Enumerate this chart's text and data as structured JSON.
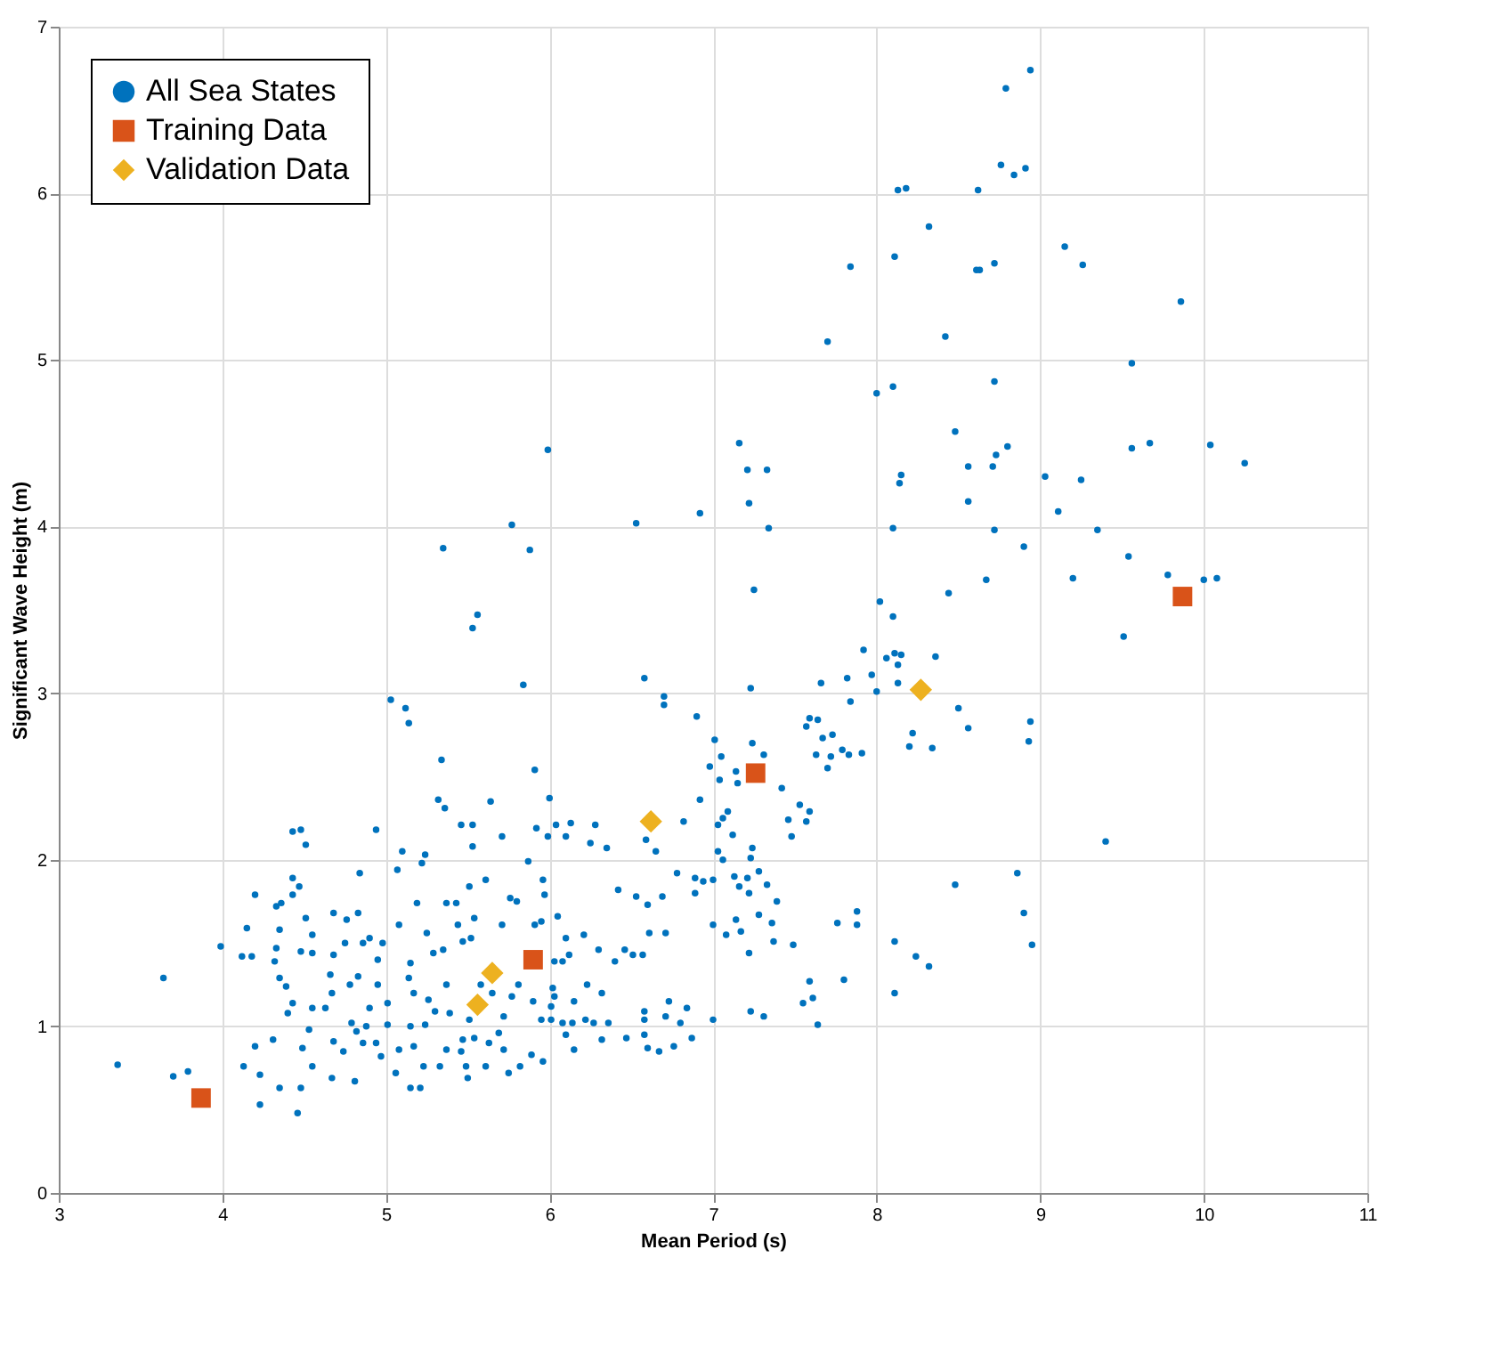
{
  "chart_data": {
    "type": "scatter",
    "xlabel": "Mean Period (s)",
    "ylabel": "Significant Wave Height (m)",
    "xlim": [
      3,
      11
    ],
    "ylim": [
      0,
      7
    ],
    "xticks": [
      3,
      4,
      5,
      6,
      7,
      8,
      9,
      10,
      11
    ],
    "yticks": [
      0,
      1,
      2,
      3,
      4,
      5,
      6,
      7
    ],
    "grid": true,
    "legend": "top left",
    "series": [
      {
        "name": "All Sea States",
        "color": "#0072bd",
        "marker": "circle",
        "x": [
          3.36,
          3.64,
          3.7,
          3.79,
          3.99,
          4.12,
          4.18,
          4.15,
          4.2,
          4.13,
          4.23,
          4.23,
          4.35,
          4.46,
          4.48,
          4.2,
          4.31,
          4.4,
          4.43,
          4.35,
          4.39,
          4.32,
          4.33,
          4.35,
          4.33,
          4.36,
          4.43,
          4.47,
          4.43,
          4.51,
          4.55,
          4.48,
          4.55,
          4.68,
          4.66,
          4.67,
          4.63,
          4.55,
          4.53,
          4.49,
          4.55,
          4.68,
          4.74,
          4.67,
          4.81,
          4.79,
          4.68,
          4.76,
          4.83,
          4.84,
          4.75,
          4.86,
          4.9,
          4.78,
          4.83,
          4.95,
          4.9,
          4.98,
          4.95,
          5.01,
          4.94,
          4.97,
          5.03,
          5.12,
          5.14,
          4.94,
          4.43,
          4.48,
          4.51,
          5.07,
          5.1,
          5.22,
          5.24,
          5.34,
          5.32,
          5.36,
          5.46,
          5.53,
          5.53,
          5.64,
          5.71,
          5.84,
          5.91,
          6.0,
          6.04,
          6.13,
          6.28,
          5.99,
          6.1,
          5.92,
          5.87,
          6.58,
          6.7,
          6.7,
          6.9,
          7.01,
          6.98,
          6.92,
          6.82,
          6.65,
          6.59,
          6.35,
          6.25,
          5.61,
          5.51,
          5.19,
          5.37,
          5.43,
          5.25,
          5.08,
          5.15,
          5.14,
          5.29,
          5.35,
          5.47,
          5.52,
          5.44,
          5.54,
          5.71,
          5.8,
          5.76,
          5.96,
          5.97,
          6.05,
          5.91,
          5.95,
          5.81,
          5.77,
          5.9,
          6.02,
          6.03,
          6.01,
          5.95,
          6.01,
          6.08,
          6.14,
          6.22,
          6.27,
          6.36,
          6.32,
          6.1,
          6.15,
          5.96,
          5.89,
          5.82,
          5.75,
          5.61,
          5.5,
          5.49,
          5.47,
          5.46,
          5.37,
          5.33,
          5.23,
          5.21,
          5.15,
          5.06,
          5.08,
          5.17,
          5.15,
          5.24,
          5.3,
          5.39,
          5.51,
          5.54,
          5.63,
          5.72,
          5.69,
          5.72,
          5.58,
          5.65,
          5.37,
          5.26,
          5.17,
          5.01,
          4.88,
          4.82,
          4.86,
          6.42,
          6.53,
          6.6,
          6.69,
          6.78,
          6.89,
          7.0,
          6.61,
          6.71,
          6.46,
          6.4,
          6.51,
          6.57,
          6.3,
          6.21,
          6.1,
          6.12,
          6.03,
          6.08,
          6.23,
          6.32,
          6.15,
          6.58,
          6.73,
          6.84,
          6.58,
          6.71,
          6.8,
          7.0,
          6.58,
          6.87,
          6.67,
          6.6,
          6.47,
          6.76,
          7.0,
          7.08,
          7.05,
          7.04,
          7.14,
          7.15,
          7.24,
          7.31,
          7.42,
          7.57,
          7.59,
          7.64,
          7.67,
          7.73,
          7.63,
          7.72,
          7.79,
          7.83,
          7.91,
          7.7,
          7.84,
          7.66,
          7.82,
          7.92,
          7.97,
          8.0,
          8.06,
          8.11,
          8.15,
          8.13,
          8.13,
          8.02,
          8.1,
          7.23,
          8.36,
          8.5,
          8.56,
          8.22,
          8.2,
          8.34,
          8.94,
          8.93,
          7.09,
          7.06,
          7.03,
          7.12,
          7.03,
          7.06,
          7.23,
          7.24,
          7.53,
          7.59,
          7.46,
          7.57,
          7.48,
          6.89,
          6.94,
          7.13,
          7.16,
          7.21,
          7.28,
          7.33,
          7.39,
          7.22,
          7.28,
          7.14,
          7.17,
          7.36,
          7.22,
          7.37,
          7.49,
          7.76,
          7.88,
          7.88,
          7.8,
          7.59,
          7.61,
          7.55,
          7.64,
          7.31,
          7.23,
          8.11,
          8.24,
          8.32,
          8.11,
          8.48,
          8.86,
          8.9,
          8.95,
          9.4,
          8.94,
          8.79,
          8.76,
          8.91,
          8.84,
          8.13,
          8.18,
          8.62,
          8.32,
          9.15,
          9.26,
          8.61,
          8.63,
          8.72,
          7.84,
          8.11,
          9.86,
          8.42,
          7.7,
          9.56,
          8.72,
          8.1,
          8.0,
          8.48,
          9.56,
          9.67,
          10.04,
          10.25,
          8.8,
          8.73,
          8.56,
          8.71,
          8.15,
          8.14,
          9.03,
          9.25,
          8.56,
          9.11,
          8.1,
          8.72,
          8.9,
          9.35,
          9.54,
          9.2,
          8.67,
          8.44,
          9.51,
          9.78,
          10.0,
          10.08,
          7.16,
          7.21,
          7.33,
          7.22,
          7.34,
          6.92,
          7.25,
          6.53,
          5.99,
          5.77,
          5.88,
          5.35,
          5.56,
          5.53
        ],
        "values": [
          0.77,
          1.29,
          0.7,
          0.73,
          1.48,
          1.42,
          1.42,
          1.59,
          1.79,
          0.76,
          0.71,
          0.53,
          0.63,
          0.48,
          0.63,
          0.88,
          0.92,
          1.08,
          1.14,
          1.29,
          1.24,
          1.39,
          1.47,
          1.58,
          1.72,
          1.74,
          1.89,
          1.84,
          1.79,
          1.65,
          1.55,
          1.45,
          1.44,
          1.43,
          1.31,
          1.2,
          1.11,
          1.11,
          0.98,
          0.87,
          0.76,
          0.91,
          0.85,
          0.69,
          0.67,
          1.02,
          1.68,
          1.64,
          1.68,
          1.92,
          1.5,
          1.5,
          1.53,
          1.25,
          1.3,
          1.25,
          1.11,
          1.5,
          1.4,
          1.14,
          0.9,
          0.82,
          2.96,
          2.91,
          2.82,
          2.18,
          2.17,
          2.18,
          2.09,
          1.94,
          2.05,
          1.98,
          2.03,
          2.6,
          2.36,
          2.31,
          2.21,
          2.21,
          2.08,
          2.35,
          2.14,
          3.05,
          2.54,
          2.37,
          2.21,
          2.22,
          2.21,
          2.14,
          2.14,
          2.19,
          1.99,
          3.09,
          2.98,
          2.93,
          2.86,
          2.72,
          2.56,
          2.36,
          2.23,
          2.05,
          2.12,
          2.07,
          2.1,
          1.88,
          1.84,
          1.74,
          1.74,
          1.74,
          1.56,
          1.61,
          1.38,
          1.29,
          1.44,
          1.46,
          1.51,
          1.53,
          1.61,
          1.65,
          1.61,
          1.75,
          1.77,
          1.88,
          1.79,
          1.66,
          1.61,
          1.63,
          1.25,
          1.18,
          1.15,
          1.23,
          1.18,
          1.12,
          1.04,
          1.04,
          1.02,
          1.02,
          1.04,
          1.02,
          1.02,
          0.92,
          0.95,
          0.86,
          0.79,
          0.83,
          0.76,
          0.72,
          0.76,
          0.69,
          0.76,
          0.92,
          0.85,
          0.86,
          0.76,
          0.76,
          0.63,
          0.63,
          0.72,
          0.86,
          0.88,
          1.0,
          1.01,
          1.09,
          1.08,
          1.04,
          0.93,
          0.9,
          0.86,
          0.96,
          1.06,
          1.25,
          1.2,
          1.25,
          1.16,
          1.2,
          1.01,
          1.0,
          0.97,
          0.9,
          1.82,
          1.78,
          1.73,
          1.78,
          1.92,
          1.8,
          1.88,
          1.56,
          1.56,
          1.46,
          1.39,
          1.43,
          1.43,
          1.46,
          1.55,
          1.53,
          1.43,
          1.39,
          1.39,
          1.25,
          1.2,
          1.15,
          1.09,
          1.15,
          1.11,
          1.04,
          1.06,
          1.02,
          1.04,
          0.95,
          0.93,
          0.85,
          0.87,
          0.93,
          0.88,
          1.61,
          1.55,
          2.62,
          2.48,
          2.53,
          2.46,
          2.7,
          2.63,
          2.43,
          2.8,
          2.85,
          2.84,
          2.73,
          2.75,
          2.63,
          2.62,
          2.66,
          2.63,
          2.64,
          2.55,
          2.95,
          3.06,
          3.09,
          3.26,
          3.11,
          3.01,
          3.21,
          3.24,
          3.23,
          3.17,
          3.06,
          3.55,
          3.46,
          3.03,
          3.22,
          2.91,
          2.79,
          2.76,
          2.68,
          2.67,
          2.83,
          2.71,
          2.29,
          2.25,
          2.21,
          2.15,
          2.05,
          2.0,
          2.01,
          2.07,
          2.33,
          2.29,
          2.24,
          2.23,
          2.14,
          1.89,
          1.87,
          1.9,
          1.84,
          1.89,
          1.93,
          1.85,
          1.75,
          1.8,
          1.67,
          1.64,
          1.57,
          1.62,
          1.44,
          1.51,
          1.49,
          1.62,
          1.69,
          1.61,
          1.28,
          1.27,
          1.17,
          1.14,
          1.01,
          1.06,
          1.09,
          1.51,
          1.42,
          1.36,
          1.2,
          1.85,
          1.92,
          1.68,
          1.49,
          2.11,
          6.74,
          6.63,
          6.17,
          6.15,
          6.11,
          6.02,
          6.03,
          6.02,
          5.8,
          5.68,
          5.57,
          5.54,
          5.54,
          5.58,
          5.56,
          5.62,
          5.35,
          5.14,
          5.11,
          4.98,
          4.87,
          4.84,
          4.8,
          4.57,
          4.47,
          4.5,
          4.49,
          4.38,
          4.48,
          4.43,
          4.36,
          4.36,
          4.31,
          4.26,
          4.3,
          4.28,
          4.15,
          4.09,
          3.99,
          3.98,
          3.88,
          3.98,
          3.82,
          3.69,
          3.68,
          3.6,
          3.34,
          3.71,
          3.68,
          3.69,
          4.5,
          4.34,
          4.34,
          4.14,
          3.99,
          4.08,
          3.62,
          4.02,
          4.46,
          4.01,
          3.86,
          3.87,
          3.47,
          3.39
        ]
      },
      {
        "name": "Training Data",
        "color": "#d95319",
        "marker": "square",
        "x": [
          3.87,
          5.9,
          7.26,
          9.87
        ],
        "values": [
          0.57,
          1.4,
          2.52,
          3.58
        ]
      },
      {
        "name": "Validation Data",
        "color": "#edb120",
        "marker": "diamond",
        "x": [
          5.56,
          5.65,
          6.62,
          8.27
        ],
        "values": [
          1.13,
          1.32,
          2.23,
          3.02
        ]
      }
    ]
  }
}
